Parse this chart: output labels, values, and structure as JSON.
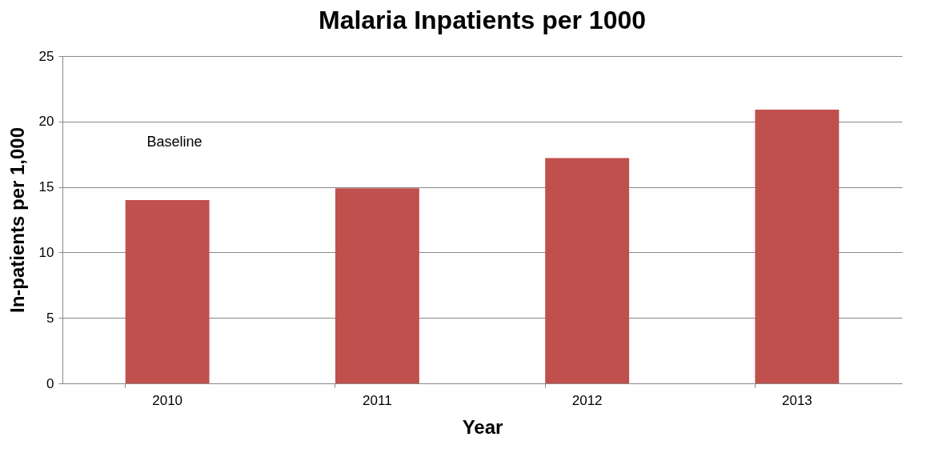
{
  "chart_data": {
    "type": "bar",
    "title": "Malaria Inpatients per 1000",
    "xlabel": "Year",
    "ylabel": "In-patients per 1,000",
    "categories": [
      "2010",
      "2011",
      "2012",
      "2013"
    ],
    "values": [
      14.0,
      14.9,
      17.2,
      20.9
    ],
    "color": "#c0504d",
    "ylim": [
      0,
      25
    ],
    "yticks": [
      0,
      5,
      10,
      15,
      20,
      25
    ],
    "grid": "y",
    "annotations": [
      "Baseline"
    ]
  }
}
